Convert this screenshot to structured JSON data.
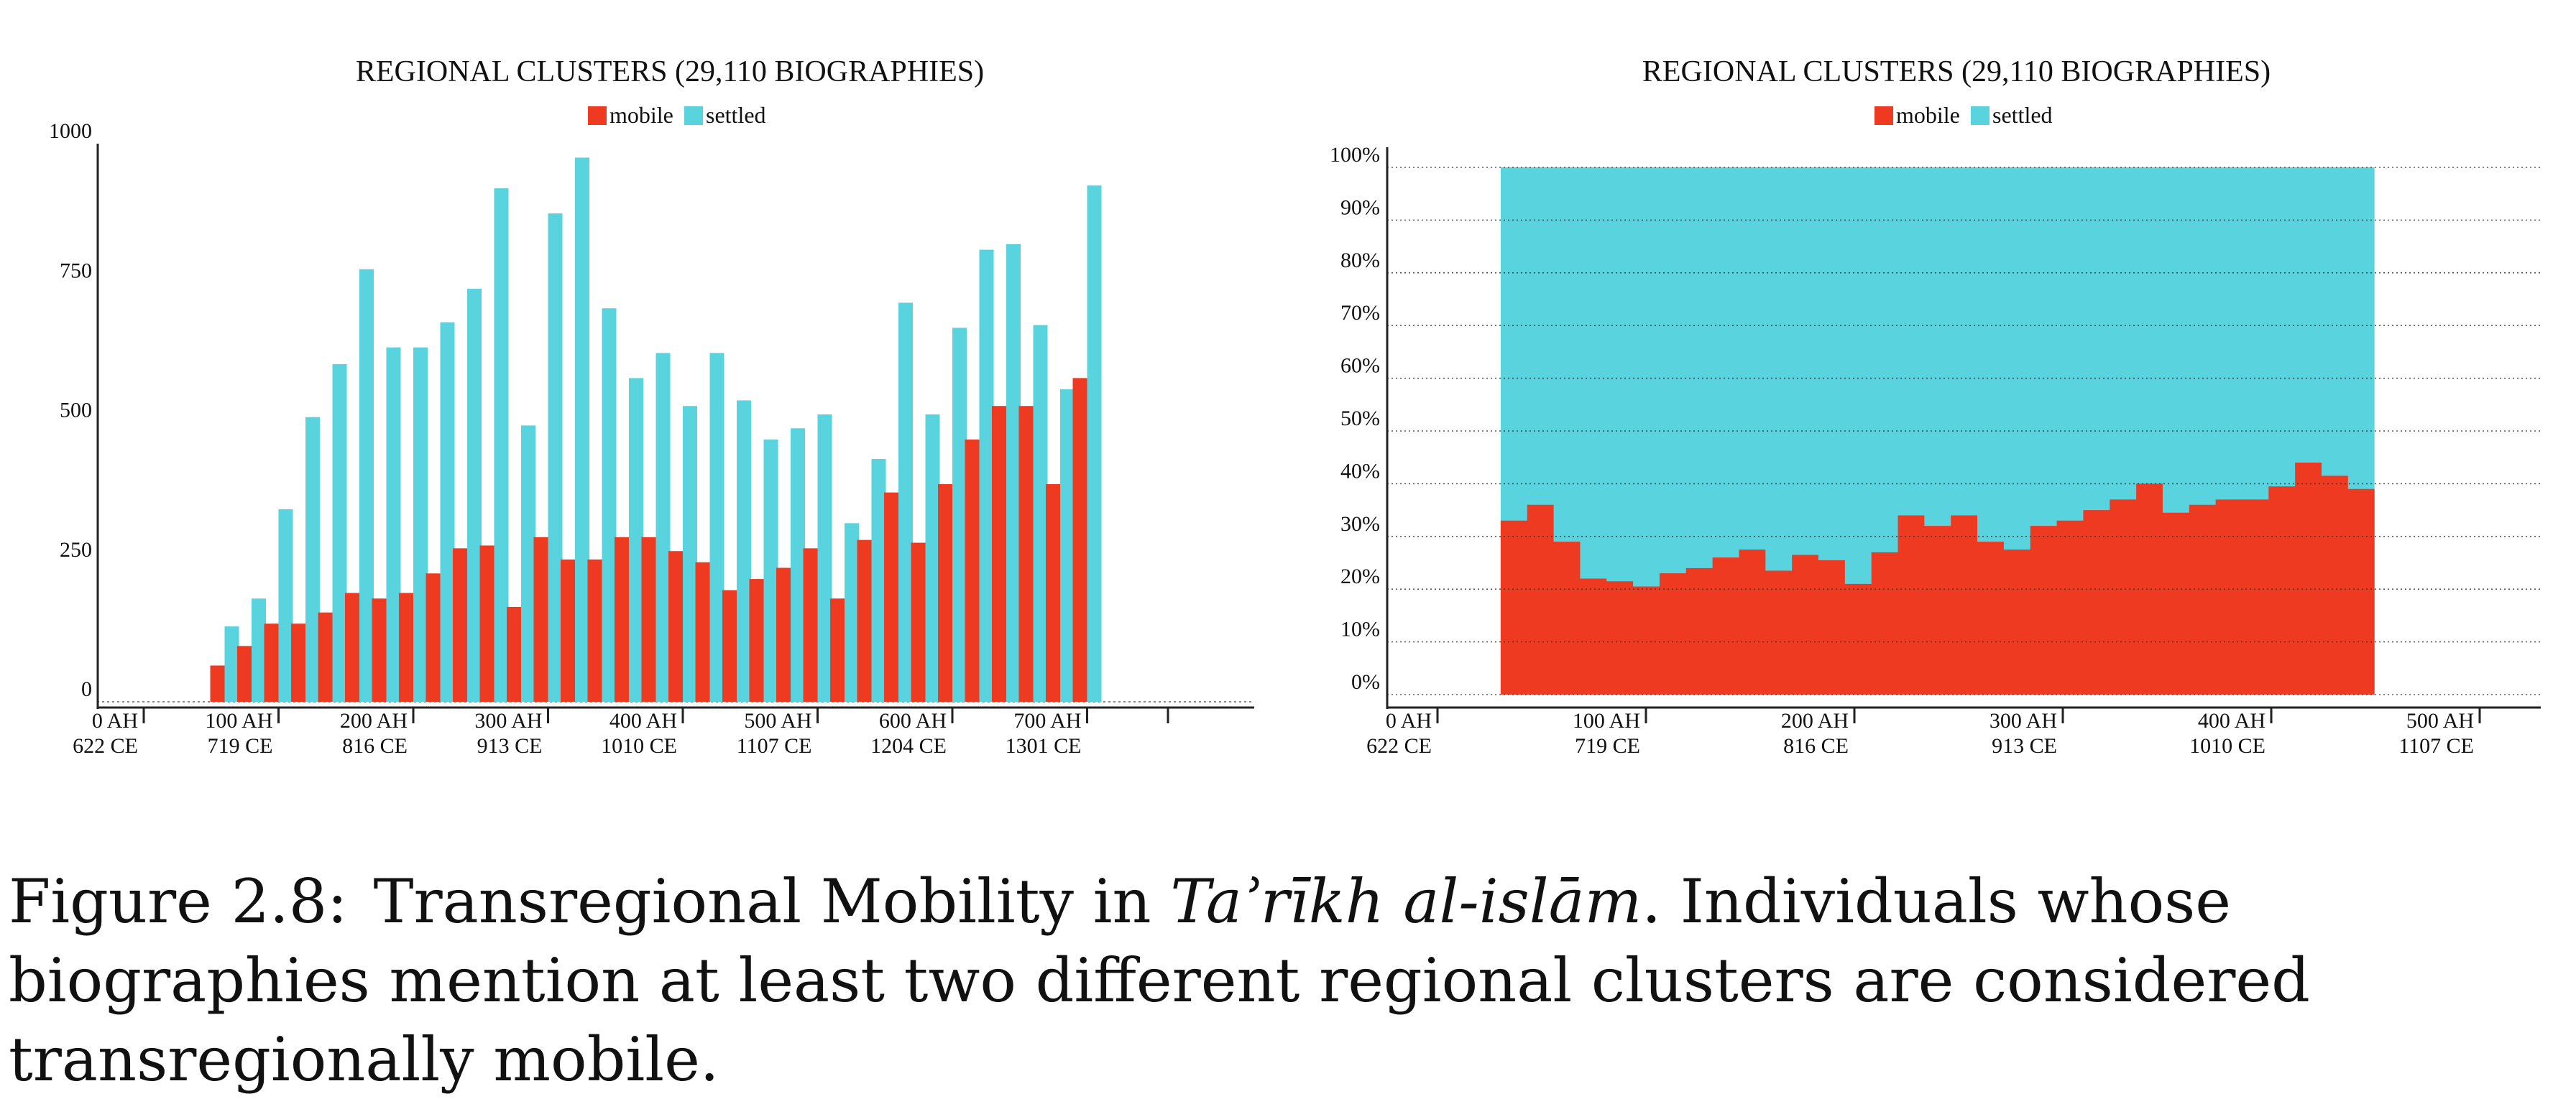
{
  "caption": {
    "label": "Figure 2.8:",
    "text_before_title": "Transregional Mobility in",
    "source_title": "Taʾrīkh al-islām",
    "text_after_title": ". Individuals whose biographies mention at least two different regional clusters are considered transregionally mobile."
  },
  "colors": {
    "mobile": "#ee3a21",
    "settled": "#59d3de",
    "axis": "#222222",
    "grid": "#888888"
  },
  "chart_data": [
    {
      "type": "bar",
      "title": "REGIONAL CLUSTERS (29,110 BIOGRAPHIES)",
      "legend": [
        "mobile",
        "settled"
      ],
      "legend_position": "top-center",
      "x_ticks": [
        {
          "ah": 0,
          "label1": "0 AH",
          "label2": "622 CE"
        },
        {
          "ah": 100,
          "label1": "100 AH",
          "label2": "719 CE"
        },
        {
          "ah": 200,
          "label1": "200 AH",
          "label2": "816 CE"
        },
        {
          "ah": 300,
          "label1": "300 AH",
          "label2": "913 CE"
        },
        {
          "ah": 400,
          "label1": "400 AH",
          "label2": "1010 CE"
        },
        {
          "ah": 500,
          "label1": "500 AH",
          "label2": "1107 CE"
        },
        {
          "ah": 600,
          "label1": "600 AH",
          "label2": "1204 CE"
        },
        {
          "ah": 700,
          "label1": "700 AH",
          "label2": "1301 CE"
        }
      ],
      "xlim": [
        0,
        760
      ],
      "ylim": [
        0,
        1000
      ],
      "y_ticks": [
        0,
        250,
        500,
        750,
        1000
      ],
      "x": [
        60,
        80,
        100,
        120,
        140,
        160,
        180,
        200,
        220,
        240,
        260,
        280,
        300,
        320,
        340,
        360,
        380,
        400,
        420,
        440,
        460,
        480,
        500,
        520,
        540,
        560,
        580,
        600,
        620,
        640,
        660,
        680,
        700
      ],
      "series": [
        {
          "name": "mobile",
          "values": [
            65,
            100,
            140,
            140,
            160,
            195,
            185,
            195,
            230,
            275,
            280,
            170,
            295,
            255,
            255,
            295,
            295,
            270,
            250,
            200,
            220,
            240,
            275,
            185,
            290,
            375,
            285,
            390,
            470,
            530,
            530,
            390,
            580
          ]
        },
        {
          "name": "settled",
          "values": [
            135,
            185,
            345,
            510,
            605,
            775,
            635,
            635,
            680,
            740,
            920,
            495,
            875,
            975,
            705,
            580,
            625,
            530,
            625,
            540,
            470,
            490,
            515,
            320,
            435,
            715,
            515,
            670,
            810,
            820,
            675,
            560,
            925
          ]
        }
      ]
    },
    {
      "type": "area",
      "title": "REGIONAL CLUSTERS (29,110 BIOGRAPHIES)",
      "legend": [
        "mobile",
        "settled"
      ],
      "legend_position": "top-center",
      "x_ticks": [
        {
          "ah": 0,
          "label1": "0 AH",
          "label2": "622 CE"
        },
        {
          "ah": 100,
          "label1": "100 AH",
          "label2": "719 CE"
        },
        {
          "ah": 200,
          "label1": "200 AH",
          "label2": "816 CE"
        },
        {
          "ah": 300,
          "label1": "300 AH",
          "label2": "913 CE"
        },
        {
          "ah": 400,
          "label1": "400 AH",
          "label2": "1010 CE"
        },
        {
          "ah": 500,
          "label1": "500 AH",
          "label2": "1107 CE"
        },
        {
          "ah": 600,
          "label1": "600 AH",
          "label2": "1204 CE"
        },
        {
          "ah": 700,
          "label1": "700 AH",
          "label2": "1301 CE"
        }
      ],
      "xlim": [
        0,
        760
      ],
      "ylim": [
        0,
        100
      ],
      "y_ticks": [
        "0%",
        "10%",
        "20%",
        "30%",
        "40%",
        "50%",
        "60%",
        "70%",
        "80%",
        "90%",
        "100%"
      ],
      "grid": true,
      "x": [
        60,
        80,
        100,
        120,
        140,
        160,
        180,
        200,
        220,
        240,
        260,
        280,
        300,
        320,
        340,
        360,
        380,
        400,
        420,
        440,
        460,
        480,
        500,
        520,
        540,
        560,
        580,
        600,
        620,
        640,
        660,
        680,
        700
      ],
      "series": [
        {
          "name": "mobile",
          "values": [
            33,
            36,
            29,
            22,
            21.5,
            20.5,
            23,
            24,
            26,
            27.5,
            23.5,
            26.5,
            25.5,
            21,
            27,
            34,
            32,
            34,
            29,
            27.5,
            32,
            33,
            35,
            37,
            40,
            34.5,
            36,
            37,
            37,
            39.5,
            44,
            41.5,
            39
          ]
        },
        {
          "name": "settled",
          "values": [
            67,
            64,
            71,
            78,
            78.5,
            79.5,
            77,
            76,
            74,
            72.5,
            76.5,
            73.5,
            74.5,
            79,
            73,
            66,
            68,
            66,
            71,
            72.5,
            68,
            67,
            65,
            63,
            60,
            65.5,
            64,
            63,
            63,
            60.5,
            56,
            58.5,
            61
          ]
        }
      ]
    }
  ]
}
